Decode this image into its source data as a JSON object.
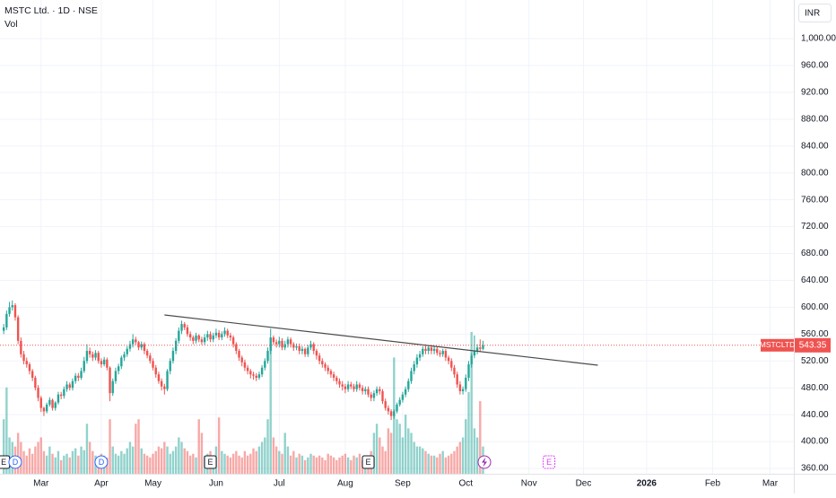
{
  "chart_data": {
    "type": "candlestick",
    "title": "MSTC Ltd. · 1D · NSE",
    "volume_label": "Vol",
    "currency": "INR",
    "symbol_label": "MSTCLTD",
    "up_color": "#26a69a",
    "down_color": "#ef5350",
    "grid": true,
    "xlim": [
      -1.3,
      275.3
    ],
    "ylim": [
      352,
      1057.5
    ],
    "xticks": [
      {
        "value": 13,
        "label": "Mar"
      },
      {
        "value": 34,
        "label": "Apr"
      },
      {
        "value": 52,
        "label": "May"
      },
      {
        "value": 74,
        "label": "Jun"
      },
      {
        "value": 96,
        "label": "Jul"
      },
      {
        "value": 119,
        "label": "Aug"
      },
      {
        "value": 139,
        "label": "Sep"
      },
      {
        "value": 161,
        "label": "Oct"
      },
      {
        "value": 183,
        "label": "Nov"
      },
      {
        "value": 202,
        "label": "Dec"
      },
      {
        "value": 224,
        "label": "2026"
      },
      {
        "value": 247,
        "label": "Feb"
      },
      {
        "value": 267,
        "label": "Mar"
      }
    ],
    "yticks": [
      {
        "value": 360,
        "label": "360.00"
      },
      {
        "value": 400,
        "label": "400.00"
      },
      {
        "value": 440,
        "label": "440.00"
      },
      {
        "value": 480,
        "label": "480.00"
      },
      {
        "value": 520,
        "label": "520.00"
      },
      {
        "value": 560,
        "label": "560.00"
      },
      {
        "value": 600,
        "label": "600.00"
      },
      {
        "value": 640,
        "label": "640.00"
      },
      {
        "value": 680,
        "label": "680.00"
      },
      {
        "value": 720,
        "label": "720.00"
      },
      {
        "value": 760,
        "label": "760.00"
      },
      {
        "value": 800,
        "label": "800.00"
      },
      {
        "value": 840,
        "label": "840.00"
      },
      {
        "value": 880,
        "label": "880.00"
      },
      {
        "value": 920,
        "label": "920.00"
      },
      {
        "value": 960,
        "label": "960.00"
      },
      {
        "value": 1000,
        "label": "1,000.00"
      }
    ],
    "open": [
      565,
      570,
      590,
      600,
      603,
      585,
      550,
      530,
      520,
      515,
      505,
      495,
      480,
      465,
      450,
      445,
      455,
      462,
      450,
      458,
      470,
      468,
      478,
      485,
      480,
      490,
      498,
      495,
      505,
      520,
      535,
      530,
      525,
      532,
      520,
      515,
      522,
      510,
      472,
      490,
      505,
      512,
      525,
      530,
      538,
      545,
      552,
      548,
      540,
      545,
      535,
      528,
      520,
      510,
      500,
      490,
      482,
      478,
      505,
      520,
      535,
      550,
      565,
      575,
      570,
      560,
      555,
      550,
      558,
      552,
      548,
      555,
      560,
      552,
      558,
      562,
      555,
      560,
      565,
      558,
      555,
      545,
      535,
      525,
      518,
      510,
      505,
      500,
      498,
      495,
      500,
      510,
      520,
      535,
      555,
      548,
      545,
      550,
      540,
      545,
      552,
      545,
      540,
      542,
      535,
      538,
      530,
      540,
      545,
      535,
      528,
      520,
      515,
      510,
      505,
      500,
      495,
      490,
      485,
      482,
      478,
      485,
      482,
      478,
      485,
      480,
      475,
      478,
      470,
      465,
      472,
      478,
      475,
      460,
      450,
      445,
      438,
      445,
      455,
      462,
      470,
      478,
      490,
      505,
      515,
      525,
      530,
      538,
      535,
      540,
      535,
      538,
      532,
      530,
      535,
      525,
      520,
      510,
      500,
      485,
      475,
      478,
      495,
      515,
      528,
      535,
      540,
      538
    ],
    "high": [
      575,
      595,
      608,
      610,
      606,
      588,
      555,
      535,
      525,
      518,
      508,
      498,
      484,
      468,
      452,
      458,
      466,
      464,
      460,
      474,
      474,
      482,
      490,
      488,
      494,
      502,
      502,
      510,
      526,
      545,
      540,
      534,
      536,
      535,
      524,
      526,
      525,
      512,
      494,
      510,
      516,
      528,
      534,
      542,
      550,
      560,
      556,
      550,
      549,
      548,
      538,
      532,
      524,
      514,
      504,
      494,
      486,
      508,
      524,
      540,
      554,
      570,
      580,
      578,
      574,
      564,
      558,
      562,
      560,
      556,
      560,
      565,
      564,
      562,
      568,
      566,
      564,
      570,
      568,
      562,
      558,
      548,
      538,
      528,
      522,
      514,
      508,
      504,
      502,
      504,
      514,
      524,
      540,
      568,
      558,
      552,
      556,
      554,
      550,
      556,
      555,
      548,
      546,
      546,
      542,
      540,
      544,
      550,
      548,
      538,
      532,
      524,
      518,
      514,
      508,
      504,
      498,
      494,
      490,
      486,
      490,
      489,
      486,
      490,
      488,
      484,
      482,
      482,
      474,
      476,
      482,
      482,
      478,
      464,
      454,
      448,
      448,
      458,
      466,
      474,
      482,
      494,
      510,
      520,
      530,
      535,
      542,
      545,
      544,
      544,
      542,
      541,
      536,
      538,
      538,
      528,
      524,
      514,
      504,
      490,
      482,
      500,
      520,
      532,
      558,
      545,
      552,
      550
    ],
    "low": [
      560,
      566,
      586,
      595,
      580,
      545,
      525,
      515,
      510,
      500,
      490,
      476,
      460,
      444,
      438,
      442,
      452,
      446,
      446,
      455,
      463,
      464,
      474,
      476,
      476,
      486,
      490,
      492,
      502,
      516,
      525,
      520,
      521,
      516,
      510,
      512,
      506,
      460,
      468,
      486,
      500,
      508,
      520,
      526,
      534,
      540,
      544,
      536,
      536,
      530,
      524,
      516,
      506,
      495,
      486,
      476,
      470,
      475,
      500,
      516,
      530,
      546,
      560,
      566,
      556,
      550,
      545,
      546,
      548,
      544,
      544,
      550,
      548,
      548,
      554,
      551,
      551,
      556,
      554,
      550,
      540,
      530,
      520,
      512,
      505,
      500,
      494,
      492,
      490,
      492,
      496,
      506,
      516,
      530,
      544,
      540,
      540,
      536,
      536,
      540,
      540,
      535,
      536,
      530,
      530,
      526,
      526,
      536,
      530,
      522,
      515,
      510,
      505,
      500,
      495,
      490,
      485,
      480,
      476,
      472,
      474,
      478,
      474,
      474,
      476,
      470,
      470,
      466,
      460,
      460,
      468,
      470,
      456,
      446,
      440,
      432,
      434,
      442,
      452,
      458,
      466,
      474,
      486,
      500,
      510,
      520,
      526,
      530,
      530,
      530,
      530,
      528,
      526,
      526,
      520,
      515,
      505,
      495,
      480,
      470,
      470,
      474,
      490,
      510,
      524,
      530,
      534,
      536
    ],
    "close": [
      570,
      590,
      600,
      603,
      585,
      550,
      530,
      520,
      515,
      505,
      495,
      480,
      465,
      450,
      445,
      455,
      462,
      450,
      458,
      470,
      468,
      478,
      485,
      480,
      490,
      498,
      495,
      505,
      520,
      535,
      530,
      525,
      532,
      520,
      515,
      522,
      510,
      472,
      490,
      505,
      512,
      525,
      530,
      538,
      545,
      552,
      548,
      540,
      545,
      535,
      528,
      520,
      510,
      500,
      490,
      482,
      478,
      505,
      520,
      535,
      550,
      565,
      575,
      570,
      560,
      555,
      550,
      558,
      552,
      548,
      555,
      560,
      552,
      558,
      562,
      555,
      560,
      565,
      558,
      555,
      545,
      535,
      525,
      518,
      510,
      505,
      500,
      498,
      495,
      500,
      510,
      520,
      535,
      555,
      548,
      545,
      550,
      540,
      545,
      552,
      545,
      540,
      542,
      535,
      538,
      530,
      540,
      545,
      535,
      528,
      520,
      515,
      510,
      505,
      500,
      495,
      490,
      485,
      482,
      478,
      485,
      482,
      478,
      485,
      480,
      475,
      478,
      470,
      465,
      472,
      478,
      475,
      460,
      450,
      445,
      438,
      445,
      455,
      462,
      470,
      478,
      490,
      505,
      515,
      525,
      530,
      538,
      535,
      540,
      535,
      538,
      532,
      530,
      535,
      525,
      520,
      510,
      500,
      485,
      475,
      478,
      495,
      515,
      528,
      535,
      540,
      538,
      543.35
    ],
    "volume": [
      60,
      95,
      40,
      35,
      30,
      45,
      35,
      25,
      20,
      28,
      22,
      30,
      35,
      40,
      25,
      20,
      30,
      22,
      18,
      25,
      15,
      20,
      22,
      18,
      25,
      28,
      20,
      30,
      26,
      55,
      35,
      25,
      20,
      18,
      22,
      20,
      18,
      60,
      30,
      22,
      20,
      25,
      22,
      28,
      35,
      30,
      55,
      60,
      28,
      22,
      20,
      18,
      22,
      25,
      30,
      28,
      35,
      30,
      22,
      25,
      30,
      40,
      35,
      28,
      25,
      20,
      22,
      18,
      60,
      45,
      20,
      22,
      25,
      20,
      30,
      62,
      25,
      22,
      20,
      18,
      22,
      25,
      20,
      18,
      25,
      20,
      22,
      28,
      25,
      30,
      35,
      40,
      60,
      146,
      40,
      30,
      25,
      22,
      45,
      30,
      20,
      25,
      18,
      22,
      20,
      15,
      18,
      22,
      20,
      18,
      20,
      18,
      15,
      22,
      20,
      18,
      15,
      18,
      20,
      22,
      18,
      15,
      20,
      18,
      22,
      15,
      18,
      20,
      25,
      45,
      55,
      40,
      30,
      25,
      50,
      45,
      128,
      60,
      55,
      40,
      65,
      50,
      45,
      35,
      30,
      30,
      28,
      25,
      22,
      20,
      20,
      18,
      22,
      25,
      18,
      20,
      22,
      25,
      30,
      35,
      40,
      60,
      90,
      156,
      50,
      40,
      80,
      30
    ],
    "trendline": {
      "x": [
        56,
        207
      ],
      "y": [
        588.5,
        513.7
      ]
    },
    "events": [
      {
        "x": 0,
        "label": "E"
      },
      {
        "x": 4,
        "label": "D"
      },
      {
        "x": 34,
        "label": "D"
      },
      {
        "x": 72,
        "label": "E"
      },
      {
        "x": 127,
        "label": "E"
      },
      {
        "x": 190,
        "label": "E"
      }
    ]
  }
}
